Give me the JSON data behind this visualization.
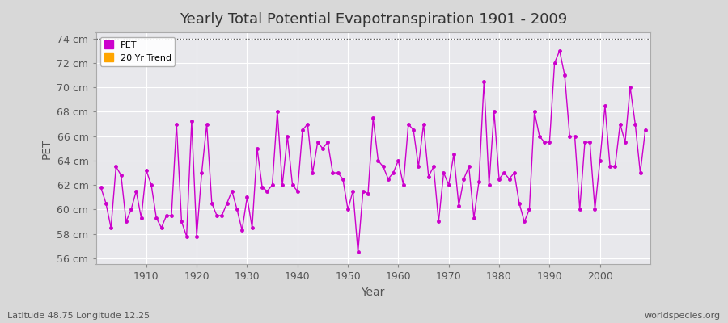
{
  "title": "Yearly Total Potential Evapotranspiration 1901 - 2009",
  "xlabel": "Year",
  "ylabel": "PET",
  "subtitle": "Latitude 48.75 Longitude 12.25",
  "watermark": "worldspecies.org",
  "bg_color": "#e8e8e8",
  "plot_bg_color": "#e0e0e8",
  "line_color": "#cc00cc",
  "trend_color": "#ffa500",
  "ylim": [
    55.5,
    74.5
  ],
  "yticks": [
    56,
    58,
    60,
    62,
    64,
    66,
    68,
    70,
    72,
    74
  ],
  "ytick_labels": [
    "56 cm",
    "58 cm",
    "60 cm",
    "62 cm",
    "64 cm",
    "66 cm",
    "68 cm",
    "70 cm",
    "72 cm",
    "74 cm"
  ],
  "xlim": [
    1900,
    2010
  ],
  "xticks": [
    1910,
    1920,
    1930,
    1940,
    1950,
    1960,
    1970,
    1980,
    1990,
    2000
  ],
  "hline_y": 74,
  "hline_style": "dotted",
  "years": [
    1901,
    1902,
    1903,
    1904,
    1905,
    1906,
    1907,
    1908,
    1909,
    1910,
    1911,
    1912,
    1913,
    1914,
    1915,
    1916,
    1917,
    1918,
    1919,
    1920,
    1921,
    1922,
    1923,
    1924,
    1925,
    1926,
    1927,
    1928,
    1929,
    1930,
    1931,
    1932,
    1933,
    1934,
    1935,
    1936,
    1937,
    1938,
    1939,
    1940,
    1941,
    1942,
    1943,
    1944,
    1945,
    1946,
    1947,
    1948,
    1949,
    1950,
    1951,
    1952,
    1953,
    1954,
    1955,
    1956,
    1957,
    1958,
    1959,
    1960,
    1961,
    1962,
    1963,
    1964,
    1965,
    1966,
    1967,
    1968,
    1969,
    1970,
    1971,
    1972,
    1973,
    1974,
    1975,
    1976,
    1977,
    1978,
    1979,
    1980,
    1981,
    1982,
    1983,
    1984,
    1985,
    1986,
    1987,
    1988,
    1989,
    1990,
    1991,
    1992,
    1993,
    1994,
    1995,
    1996,
    1997,
    1998,
    1999,
    2000,
    2001,
    2002,
    2003,
    2004,
    2005,
    2006,
    2007,
    2008,
    2009
  ],
  "pet": [
    61.8,
    60.5,
    58.5,
    63.5,
    62.8,
    59.0,
    60.0,
    61.5,
    59.3,
    63.2,
    62.0,
    59.3,
    58.5,
    59.5,
    59.5,
    67.0,
    59.0,
    57.8,
    67.2,
    57.8,
    63.0,
    67.0,
    60.5,
    59.5,
    59.5,
    60.5,
    61.5,
    60.0,
    58.3,
    61.0,
    58.5,
    65.0,
    61.8,
    61.5,
    62.0,
    68.0,
    62.0,
    66.0,
    62.0,
    61.5,
    66.5,
    67.0,
    63.0,
    65.5,
    65.0,
    65.5,
    63.0,
    63.0,
    62.5,
    60.0,
    61.5,
    56.5,
    61.5,
    61.3,
    67.5,
    64.0,
    63.5,
    62.5,
    63.0,
    64.0,
    62.0,
    67.0,
    66.5,
    63.5,
    67.0,
    62.7,
    63.5,
    59.0,
    63.0,
    62.0,
    64.5,
    60.3,
    62.5,
    63.5,
    59.3,
    62.3,
    70.5,
    62.0,
    68.0,
    62.5,
    63.0,
    62.5,
    63.0,
    60.5,
    59.0,
    60.0,
    68.0,
    66.0,
    65.5,
    65.5,
    72.0,
    73.0,
    71.0,
    66.0,
    66.0,
    60.0,
    65.5,
    65.5,
    60.0,
    64.0,
    68.5,
    63.5,
    63.5,
    67.0,
    65.5,
    70.0,
    67.0,
    63.0,
    66.5
  ]
}
